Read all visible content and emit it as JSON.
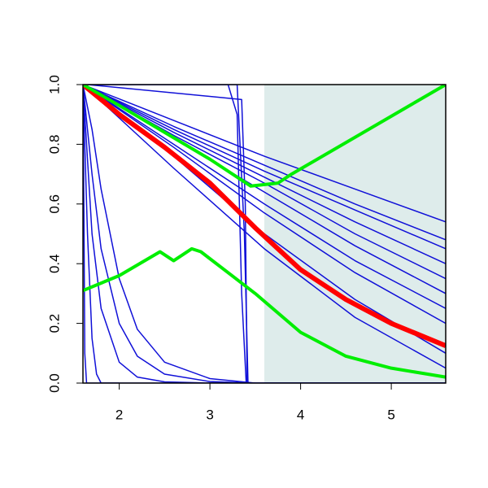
{
  "chart_data": {
    "type": "line",
    "xlim": [
      1.6,
      5.6
    ],
    "ylim": [
      0,
      1
    ],
    "xticks": [
      2,
      3,
      4,
      5
    ],
    "yticks": [
      {
        "value": 0,
        "label": "0.0"
      },
      0.2,
      0.4,
      0.6,
      0.8,
      {
        "value": 1,
        "label": "1.0"
      }
    ],
    "shade": {
      "x": [
        3.6,
        5.6
      ],
      "color": "#deeceb"
    },
    "series": [
      {
        "color": "#1010d8",
        "linewidth": 1.5,
        "x": [
          1.6,
          2.6,
          3.6,
          4.6,
          5.6
        ],
        "values": [
          1,
          0.88,
          0.76,
          0.65,
          0.54
        ]
      },
      {
        "color": "#1010d8",
        "linewidth": 1.5,
        "x": [
          1.6,
          2.6,
          3.6,
          4.6,
          5.6
        ],
        "values": [
          1,
          0.86,
          0.73,
          0.6,
          0.48
        ]
      },
      {
        "color": "#1010d8",
        "linewidth": 1.5,
        "x": [
          1.6,
          2.6,
          3.6,
          4.6,
          5.6
        ],
        "values": [
          1,
          0.85,
          0.71,
          0.58,
          0.45
        ]
      },
      {
        "color": "#1010d8",
        "linewidth": 1.5,
        "x": [
          1.6,
          2.6,
          3.6,
          4.6,
          5.6
        ],
        "values": [
          1,
          0.84,
          0.69,
          0.54,
          0.4
        ]
      },
      {
        "color": "#1010d8",
        "linewidth": 1.5,
        "x": [
          1.6,
          2.6,
          3.6,
          4.6,
          5.6
        ],
        "values": [
          1,
          0.83,
          0.67,
          0.5,
          0.35
        ]
      },
      {
        "color": "#1010d8",
        "linewidth": 1.5,
        "x": [
          1.6,
          2.6,
          3.6,
          4.6,
          5.6
        ],
        "values": [
          1,
          0.82,
          0.64,
          0.46,
          0.3
        ]
      },
      {
        "color": "#1010d8",
        "linewidth": 1.5,
        "x": [
          1.6,
          2.6,
          3.6,
          4.6,
          5.6
        ],
        "values": [
          1,
          0.8,
          0.6,
          0.41,
          0.25
        ]
      },
      {
        "color": "#1010d8",
        "linewidth": 1.5,
        "x": [
          1.6,
          2.6,
          3.6,
          4.6,
          5.6
        ],
        "values": [
          1,
          0.79,
          0.57,
          0.37,
          0.2
        ]
      },
      {
        "color": "#1010d8",
        "linewidth": 1.5,
        "x": [
          1.6,
          2.6,
          3.6,
          4.6,
          5.6
        ],
        "values": [
          1,
          0.76,
          0.5,
          0.28,
          0.1
        ]
      },
      {
        "color": "#1010d8",
        "linewidth": 1.5,
        "x": [
          1.6,
          2.6,
          3.6,
          4.6,
          5.6
        ],
        "values": [
          1,
          0.72,
          0.45,
          0.22,
          0.05
        ]
      },
      {
        "color": "#1010d8",
        "linewidth": 1.5,
        "x": [
          1.6,
          1.65,
          3.2,
          3.3,
          3.35,
          3.4,
          5.6
        ],
        "values": [
          1,
          1,
          1,
          0.9,
          0.3,
          0,
          0
        ]
      },
      {
        "color": "#1010d8",
        "linewidth": 1.5,
        "x": [
          1.6,
          1.65,
          3.3,
          3.38,
          3.42,
          5.6
        ],
        "values": [
          1,
          1,
          1,
          0.5,
          0,
          0
        ]
      },
      {
        "color": "#1010d8",
        "linewidth": 1.5,
        "x": [
          1.6,
          1.65,
          3.35,
          3.39,
          3.41,
          5.6
        ],
        "values": [
          1,
          1,
          0.95,
          0.6,
          0,
          0
        ]
      },
      {
        "color": "#1010d8",
        "linewidth": 1.5,
        "x": [
          1.6,
          1.61,
          1.62,
          1.64,
          5.6
        ],
        "values": [
          1,
          0.6,
          0.1,
          0,
          0
        ]
      },
      {
        "color": "#1010d8",
        "linewidth": 1.5,
        "x": [
          1.6,
          1.7,
          1.8,
          2,
          2.2,
          2.5,
          3,
          3.5
        ],
        "values": [
          1,
          0.7,
          0.45,
          0.2,
          0.09,
          0.03,
          0.005,
          0
        ]
      },
      {
        "color": "#1010d8",
        "linewidth": 1.5,
        "x": [
          1.6,
          1.7,
          1.8,
          2,
          2.2,
          2.5,
          3,
          3.5
        ],
        "values": [
          1,
          0.5,
          0.25,
          0.07,
          0.02,
          0.004,
          0,
          0
        ]
      },
      {
        "color": "#1010d8",
        "linewidth": 1.5,
        "x": [
          1.6,
          1.7,
          1.8,
          2,
          2.2,
          2.5,
          3,
          3.5
        ],
        "values": [
          1,
          0.85,
          0.65,
          0.35,
          0.18,
          0.07,
          0.015,
          0
        ]
      },
      {
        "color": "#1010d8",
        "linewidth": 1.5,
        "x": [
          1.6,
          1.65,
          1.7,
          1.75,
          1.8,
          2
        ],
        "values": [
          1,
          0.5,
          0.15,
          0.03,
          0,
          0
        ]
      },
      {
        "color": "#ff0000",
        "linewidth": 6,
        "x": [
          1.6,
          2,
          2.5,
          3,
          3.5,
          4,
          4.5,
          5,
          5.6
        ],
        "values": [
          1,
          0.9,
          0.79,
          0.67,
          0.52,
          0.38,
          0.28,
          0.2,
          0.125
        ]
      },
      {
        "color": "#00ee00",
        "linewidth": 4,
        "x": [
          1.6,
          2,
          2.45,
          2.6,
          2.8,
          2.9,
          3.2,
          3.5,
          4,
          4.5,
          5,
          5.6
        ],
        "values": [
          0.31,
          0.36,
          0.44,
          0.41,
          0.45,
          0.44,
          0.37,
          0.3,
          0.17,
          0.09,
          0.05,
          0.02
        ]
      },
      {
        "color": "#00ee00",
        "linewidth": 4,
        "x": [
          1.6,
          2,
          2.5,
          3,
          3.45,
          3.75,
          3.9,
          5.6
        ],
        "values": [
          1,
          0.93,
          0.84,
          0.75,
          0.66,
          0.67,
          0.7,
          1
        ]
      }
    ]
  }
}
